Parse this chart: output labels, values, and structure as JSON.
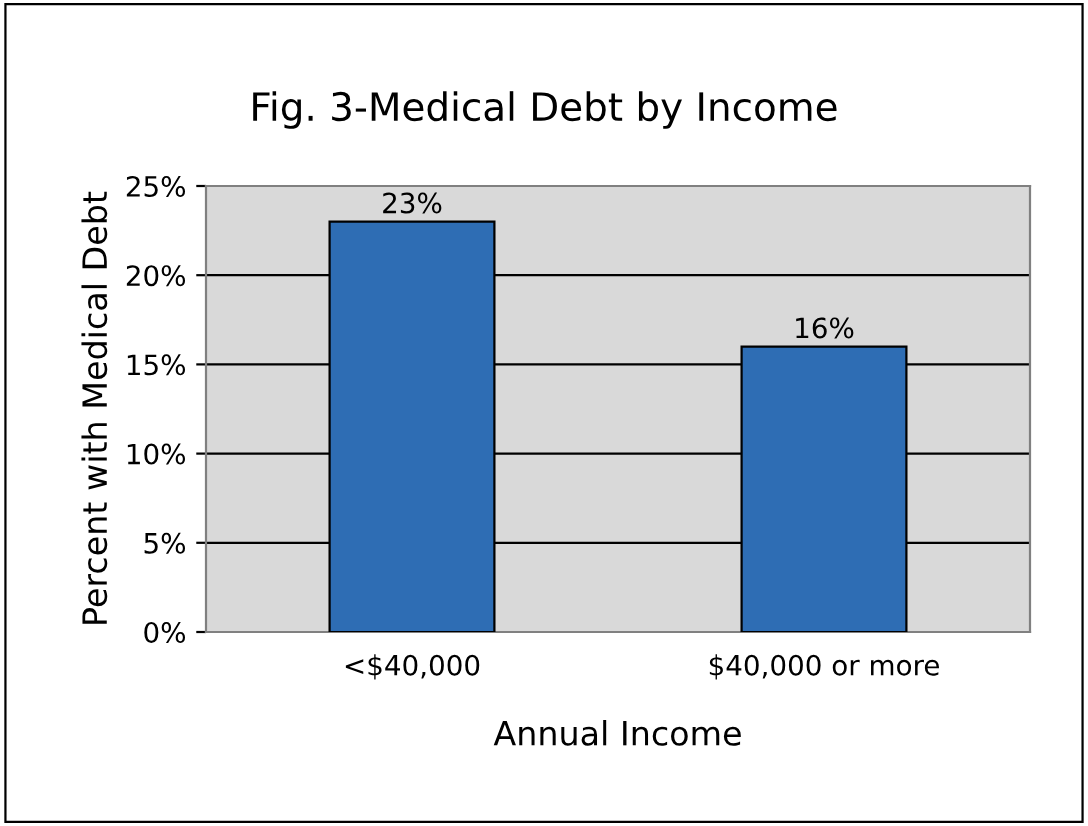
{
  "chart_data": {
    "type": "bar",
    "title": "Fig. 3-Medical Debt by Income",
    "xlabel": "Annual Income",
    "ylabel": "Percent with Medical Debt",
    "categories": [
      "<$40,000",
      "$40,000 or more"
    ],
    "values": [
      23,
      16
    ],
    "value_labels": [
      "23%",
      "16%"
    ],
    "color": "#2e6db4",
    "ylim": [
      0,
      25
    ],
    "yticks": [
      {
        "value": 0,
        "label": "0%"
      },
      {
        "value": 5,
        "label": "5%"
      },
      {
        "value": 10,
        "label": "10%"
      },
      {
        "value": 15,
        "label": "15%"
      },
      {
        "value": 20,
        "label": "20%"
      },
      {
        "value": 25,
        "label": "25%"
      }
    ],
    "grid": "y",
    "legend": false
  }
}
